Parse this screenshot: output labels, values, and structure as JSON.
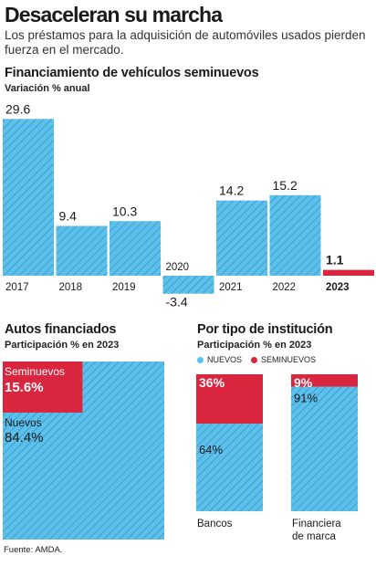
{
  "header": {
    "title": "Desaceleran su marcha",
    "subtitle": "Los préstamos para la adquisición de automóviles usados pierden fuerza en el mercado."
  },
  "colors": {
    "blue": "#5bc0eb",
    "red": "#d9263e",
    "hatch": "#2b7fa8"
  },
  "legend": {
    "new": "NUEVOS",
    "used": "SEMINUEVOS"
  },
  "source": "Fuente: AMDA.",
  "chart_data": [
    {
      "type": "bar",
      "title": "Financiamiento de vehículos seminuevos",
      "subtitle": "Variación % anual",
      "categories": [
        "2017",
        "2018",
        "2019",
        "2020",
        "2021",
        "2022",
        "2023"
      ],
      "values": [
        29.6,
        9.4,
        10.3,
        -3.4,
        14.2,
        15.2,
        1.1
      ],
      "value_labels": [
        "29.6",
        "9.4",
        "10.3",
        "-3.4",
        "14.2",
        "15.2",
        "1.1"
      ],
      "highlight_index": 6
    },
    {
      "type": "area",
      "title": "Autos financiados",
      "subtitle": "Participación % en 2023",
      "segments": [
        {
          "name": "Seminuevos",
          "value": 15.6,
          "label": "15.6%"
        },
        {
          "name": "Nuevos",
          "value": 84.4,
          "label": "84.4%"
        }
      ]
    },
    {
      "type": "bar",
      "title": "Por tipo de institución",
      "subtitle": "Participación % en 2023",
      "categories": [
        "Bancos",
        "Financiera de marca"
      ],
      "series": [
        {
          "name": "NUEVOS",
          "values": [
            64,
            91
          ],
          "labels": [
            "64%",
            "91%"
          ]
        },
        {
          "name": "SEMINUEVOS",
          "values": [
            36,
            9
          ],
          "labels": [
            "36%",
            "9%"
          ]
        }
      ]
    }
  ]
}
